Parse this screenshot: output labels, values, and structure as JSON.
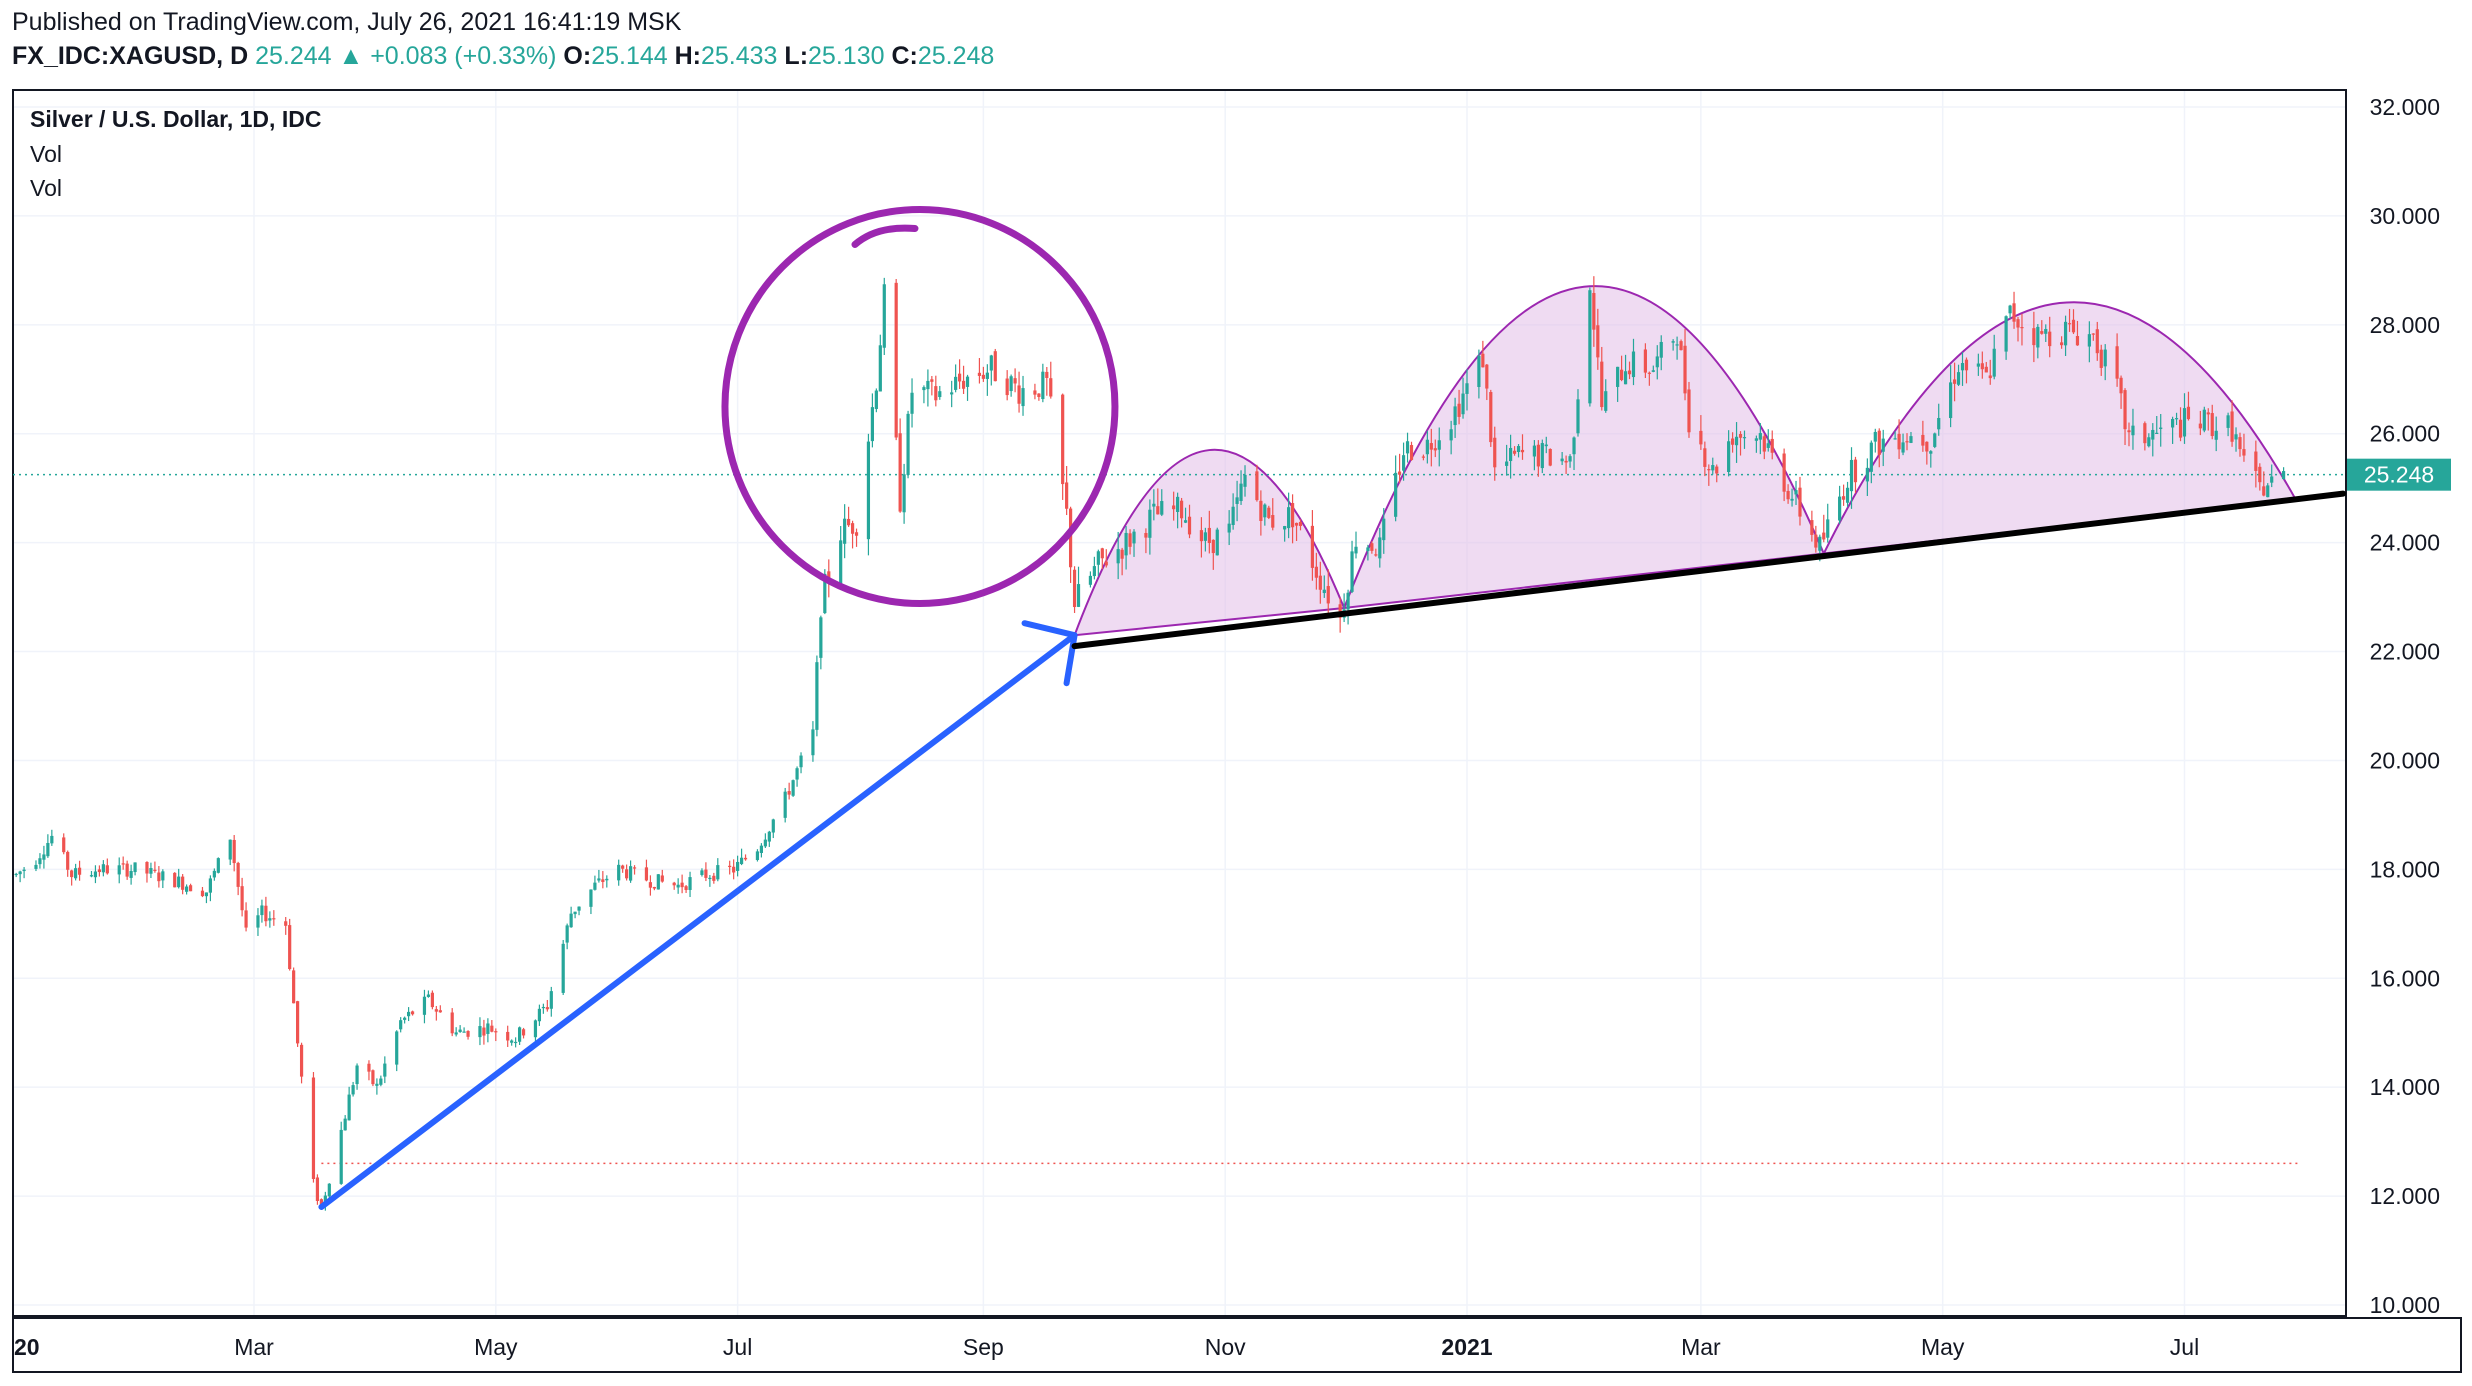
{
  "header": {
    "published": "Published on TradingView.com, July 26, 2021 16:41:19 MSK",
    "symbol": "FX_IDC:XAGUSD, D",
    "last": "25.244",
    "change": "▲ +0.083 (+0.33%)",
    "o_label": "O:",
    "o": "25.144",
    "h_label": "H:",
    "h": "25.433",
    "l_label": "L:",
    "l": "25.130",
    "c_label": "C:",
    "c": "25.248"
  },
  "legend": {
    "title": "Silver / U.S. Dollar, 1D, IDC",
    "vol1": "Vol",
    "vol2": "Vol"
  },
  "colors": {
    "up": "#26a69a",
    "down": "#ef5350",
    "last_price": "#26a69a",
    "arrow": "#2962ff",
    "circle": "#9c27b0",
    "arc_fill": "#e1bee7",
    "arc_stroke": "#9c27b0",
    "neckline": "#000000",
    "dotted_low": "#ef5350"
  },
  "chart_data": {
    "type": "candlestick",
    "title": "Silver / U.S. Dollar, 1D, IDC",
    "x_ticks": [
      "20",
      "Mar",
      "May",
      "Jul",
      "Sep",
      "Nov",
      "2021",
      "Mar",
      "May",
      "Jul"
    ],
    "y_ticks": [
      "32.000",
      "30.000",
      "28.000",
      "26.000",
      "24.000",
      "22.000",
      "20.000",
      "18.000",
      "16.000",
      "14.000",
      "12.000",
      "10.000"
    ],
    "ylim": [
      9.7,
      32.3
    ],
    "last_price_label": "25.248",
    "last_price": 25.248,
    "low_level": 12.6,
    "price_path": [
      [
        "2020-01-01",
        17.9
      ],
      [
        "2020-01-06",
        18.2
      ],
      [
        "2020-01-10",
        18.6
      ],
      [
        "2020-01-15",
        17.9
      ],
      [
        "2020-01-22",
        18.0
      ],
      [
        "2020-01-31",
        18.0
      ],
      [
        "2020-02-10",
        17.8
      ],
      [
        "2020-02-18",
        17.6
      ],
      [
        "2020-02-24",
        18.6
      ],
      [
        "2020-02-28",
        16.8
      ],
      [
        "2020-03-03",
        17.2
      ],
      [
        "2020-03-09",
        17.0
      ],
      [
        "2020-03-12",
        14.8
      ],
      [
        "2020-03-16",
        12.2
      ],
      [
        "2020-03-18",
        11.8
      ],
      [
        "2020-03-23",
        13.2
      ],
      [
        "2020-03-27",
        14.4
      ],
      [
        "2020-04-01",
        14.0
      ],
      [
        "2020-04-07",
        15.2
      ],
      [
        "2020-04-14",
        15.6
      ],
      [
        "2020-04-21",
        15.0
      ],
      [
        "2020-04-29",
        15.1
      ],
      [
        "2020-05-06",
        14.9
      ],
      [
        "2020-05-14",
        15.5
      ],
      [
        "2020-05-20",
        17.2
      ],
      [
        "2020-05-26",
        17.7
      ],
      [
        "2020-06-01",
        18.0
      ],
      [
        "2020-06-09",
        17.8
      ],
      [
        "2020-06-16",
        17.7
      ],
      [
        "2020-06-23",
        17.9
      ],
      [
        "2020-06-30",
        18.0
      ],
      [
        "2020-07-06",
        18.4
      ],
      [
        "2020-07-13",
        19.3
      ],
      [
        "2020-07-20",
        20.5
      ],
      [
        "2020-07-22",
        22.9
      ],
      [
        "2020-07-27",
        24.2
      ],
      [
        "2020-07-31",
        24.4
      ],
      [
        "2020-08-05",
        27.0
      ],
      [
        "2020-08-07",
        28.5
      ],
      [
        "2020-08-11",
        24.8
      ],
      [
        "2020-08-14",
        26.8
      ],
      [
        "2020-08-20",
        26.7
      ],
      [
        "2020-08-27",
        27.0
      ],
      [
        "2020-09-03",
        27.2
      ],
      [
        "2020-09-10",
        26.8
      ],
      [
        "2020-09-17",
        26.9
      ],
      [
        "2020-09-22",
        24.5
      ],
      [
        "2020-09-24",
        22.9
      ],
      [
        "2020-09-30",
        23.6
      ],
      [
        "2020-10-07",
        24.0
      ],
      [
        "2020-10-14",
        24.5
      ],
      [
        "2020-10-21",
        24.6
      ],
      [
        "2020-10-27",
        24.0
      ],
      [
        "2020-11-02",
        24.2
      ],
      [
        "2020-11-06",
        25.2
      ],
      [
        "2020-11-12",
        24.4
      ],
      [
        "2020-11-18",
        24.5
      ],
      [
        "2020-11-24",
        23.5
      ],
      [
        "2020-11-30",
        22.6
      ],
      [
        "2020-12-04",
        24.1
      ],
      [
        "2020-12-10",
        23.9
      ],
      [
        "2020-12-16",
        25.7
      ],
      [
        "2020-12-22",
        25.8
      ],
      [
        "2020-12-28",
        26.3
      ],
      [
        "2021-01-05",
        27.4
      ],
      [
        "2021-01-08",
        25.3
      ],
      [
        "2021-01-14",
        25.6
      ],
      [
        "2021-01-21",
        25.6
      ],
      [
        "2021-01-27",
        25.5
      ],
      [
        "2021-02-01",
        28.8
      ],
      [
        "2021-02-04",
        26.5
      ],
      [
        "2021-02-10",
        27.3
      ],
      [
        "2021-02-17",
        27.2
      ],
      [
        "2021-02-23",
        27.9
      ],
      [
        "2021-02-26",
        26.3
      ],
      [
        "2021-03-04",
        25.3
      ],
      [
        "2021-03-09",
        26.0
      ],
      [
        "2021-03-16",
        26.0
      ],
      [
        "2021-03-23",
        25.0
      ],
      [
        "2021-03-31",
        23.9
      ],
      [
        "2021-04-07",
        25.2
      ],
      [
        "2021-04-14",
        25.8
      ],
      [
        "2021-04-21",
        26.0
      ],
      [
        "2021-04-28",
        25.9
      ],
      [
        "2021-05-05",
        27.3
      ],
      [
        "2021-05-12",
        27.0
      ],
      [
        "2021-05-18",
        28.2
      ],
      [
        "2021-05-25",
        27.8
      ],
      [
        "2021-06-01",
        27.9
      ],
      [
        "2021-06-08",
        27.8
      ],
      [
        "2021-06-14",
        26.8
      ],
      [
        "2021-06-17",
        25.9
      ],
      [
        "2021-06-24",
        26.0
      ],
      [
        "2021-07-01",
        26.2
      ],
      [
        "2021-07-07",
        26.2
      ],
      [
        "2021-07-13",
        26.1
      ],
      [
        "2021-07-16",
        25.4
      ],
      [
        "2021-07-20",
        25.0
      ],
      [
        "2021-07-26",
        25.2
      ]
    ],
    "annotations": {
      "trend_arrow_1": {
        "from": [
          "2020-03-18",
          11.8
        ],
        "to": [
          "2020-09-24",
          22.3
        ]
      },
      "trend_arrow_2": {
        "from": [
          "2020-09-16",
          22.8
        ],
        "to": [
          "2020-09-24",
          22.4
        ]
      },
      "circle_center": [
        "2020-08-16",
        26.5
      ],
      "neckline": {
        "from": [
          "2020-09-24",
          22.1
        ],
        "to": [
          "2021-08-10",
          24.9
        ]
      },
      "arcs": [
        {
          "from": [
            "2020-09-24",
            22.3
          ],
          "to": [
            "2020-12-01",
            22.8
          ],
          "peak": 25.7
        },
        {
          "from": [
            "2020-12-01",
            22.8
          ],
          "to": [
            "2021-04-01",
            23.8
          ],
          "peak": 28.7
        },
        {
          "from": [
            "2021-04-01",
            23.8
          ],
          "to": [
            "2021-07-29",
            24.8
          ],
          "peak": 28.4
        }
      ]
    }
  }
}
